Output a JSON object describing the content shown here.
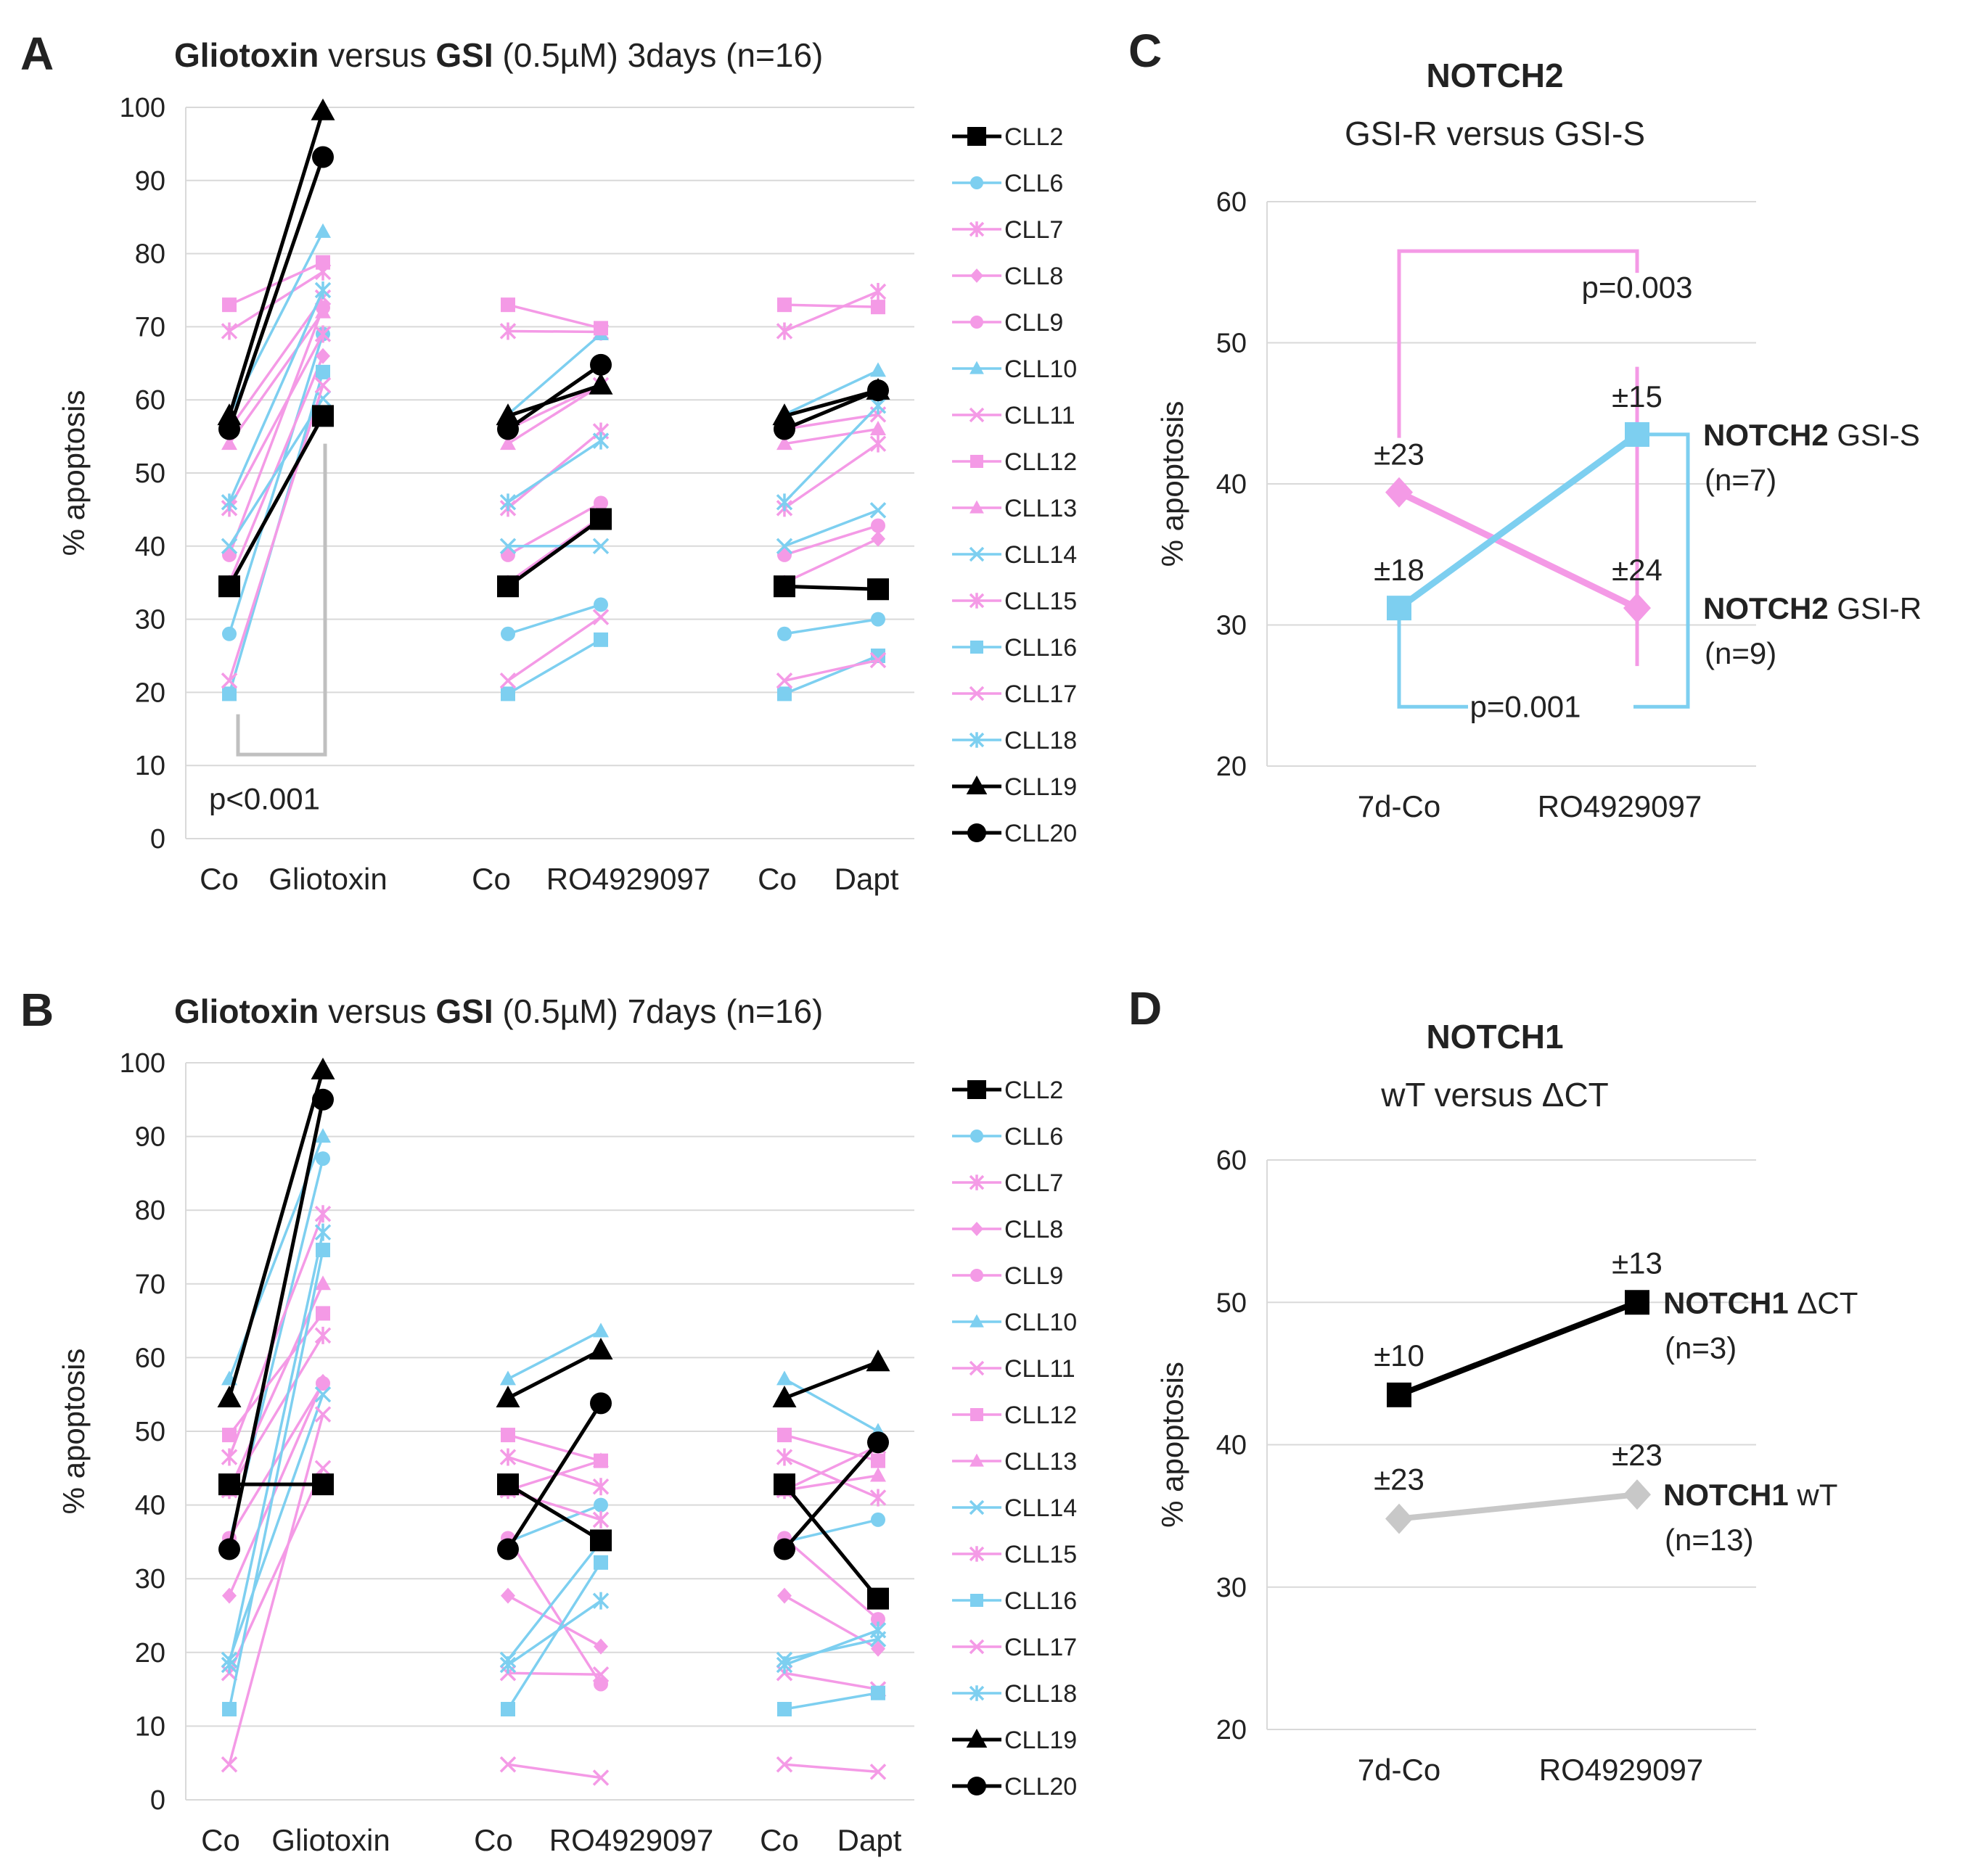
{
  "colors": {
    "black": "#000000",
    "blue": "#7dcff0",
    "pink": "#f49ae6",
    "gray": "#c8c8c8",
    "grid": "#d9d9d9"
  },
  "legend_lines": [
    "CLL2",
    "CLL6",
    "CLL7",
    "CLL8",
    "CLL9",
    "CLL10",
    "CLL11",
    "CLL12",
    "CLL13",
    "CLL14",
    "CLL15",
    "CLL16",
    "CLL17",
    "CLL18",
    "CLL19",
    "CLL20"
  ],
  "series_style": {
    "CLL2": {
      "color": "black",
      "marker": "square"
    },
    "CLL6": {
      "color": "blue",
      "marker": "circle"
    },
    "CLL7": {
      "color": "pink",
      "marker": "star"
    },
    "CLL8": {
      "color": "pink",
      "marker": "diamond"
    },
    "CLL9": {
      "color": "pink",
      "marker": "circle"
    },
    "CLL10": {
      "color": "blue",
      "marker": "triangle"
    },
    "CLL11": {
      "color": "pink",
      "marker": "x"
    },
    "CLL12": {
      "color": "pink",
      "marker": "square"
    },
    "CLL13": {
      "color": "pink",
      "marker": "triangle"
    },
    "CLL14": {
      "color": "blue",
      "marker": "x"
    },
    "CLL15": {
      "color": "pink",
      "marker": "star"
    },
    "CLL16": {
      "color": "blue",
      "marker": "square"
    },
    "CLL17": {
      "color": "pink",
      "marker": "x"
    },
    "CLL18": {
      "color": "blue",
      "marker": "star"
    },
    "CLL19": {
      "color": "black",
      "marker": "triangle"
    },
    "CLL20": {
      "color": "black",
      "marker": "circle"
    }
  },
  "chart_data": [
    {
      "id": "A",
      "panel_label": "A",
      "type": "line",
      "title": {
        "part1": "Gliotoxin",
        "part2": " versus ",
        "part3": "GSI",
        "part4": " (0.5µM) 3days (n=16)"
      },
      "ylabel": "% apoptosis",
      "ylim": [
        0,
        100
      ],
      "yticks": [
        0,
        10,
        20,
        30,
        40,
        50,
        60,
        70,
        80,
        90,
        100
      ],
      "categories": [
        "Co",
        "Gliotoxin",
        "Co",
        "RO4929097",
        "Co",
        "Dapt"
      ],
      "annotation": "p<0.001",
      "series": [
        {
          "name": "CLL2",
          "values": [
            34.5,
            57.8,
            34.5,
            43.7,
            34.5,
            34.1
          ]
        },
        {
          "name": "CLL6",
          "values": [
            28,
            69,
            28,
            32,
            28,
            30
          ]
        },
        {
          "name": "CLL7",
          "values": [
            69.4,
            77.5,
            69.4,
            69.3,
            69.4,
            74.8
          ]
        },
        {
          "name": "CLL8",
          "values": [
            35,
            66,
            35,
            44,
            35,
            41
          ]
        },
        {
          "name": "CLL9",
          "values": [
            38.8,
            72.6,
            38.8,
            45.9,
            38.8,
            42.8
          ]
        },
        {
          "name": "CLL10",
          "values": [
            58,
            83,
            58,
            69,
            58,
            64
          ]
        },
        {
          "name": "CLL11",
          "values": [
            56,
            74,
            56,
            62,
            56,
            58
          ]
        },
        {
          "name": "CLL12",
          "values": [
            73,
            78.8,
            73,
            69.8,
            73,
            72.7
          ]
        },
        {
          "name": "CLL13",
          "values": [
            54,
            72,
            54,
            62,
            54,
            56
          ]
        },
        {
          "name": "CLL14",
          "values": [
            40,
            60.2,
            40,
            40,
            40,
            44.9
          ]
        },
        {
          "name": "CLL15",
          "values": [
            45.2,
            69,
            45.2,
            55.7,
            45.2,
            54
          ]
        },
        {
          "name": "CLL16",
          "values": [
            19.8,
            63.8,
            19.8,
            27.2,
            19.8,
            25
          ]
        },
        {
          "name": "CLL17",
          "values": [
            21.6,
            62,
            21.6,
            30.3,
            21.6,
            24.4
          ]
        },
        {
          "name": "CLL18",
          "values": [
            46,
            75,
            46,
            54.4,
            46,
            59.2
          ]
        },
        {
          "name": "CLL19",
          "values": [
            57.8,
            99.5,
            57.8,
            62,
            57.8,
            61.3
          ]
        },
        {
          "name": "CLL20",
          "values": [
            56,
            93.2,
            56,
            64.8,
            56,
            61.3
          ]
        }
      ]
    },
    {
      "id": "B",
      "panel_label": "B",
      "type": "line",
      "title": {
        "part1": "Gliotoxin",
        "part2": " versus ",
        "part3": "GSI",
        "part4": " (0.5µM) 7days (n=16)"
      },
      "ylabel": "% apoptosis",
      "ylim": [
        0,
        100
      ],
      "yticks": [
        0,
        10,
        20,
        30,
        40,
        50,
        60,
        70,
        80,
        90,
        100
      ],
      "categories": [
        "Co",
        "Gliotoxin",
        "Co",
        "RO4929097",
        "Co",
        "Dapt"
      ],
      "series": [
        {
          "name": "CLL2",
          "values": [
            42.8,
            42.8,
            42.8,
            35.2,
            42.8,
            27.3
          ]
        },
        {
          "name": "CLL6",
          "values": [
            35,
            87,
            35,
            40,
            35,
            38
          ]
        },
        {
          "name": "CLL7",
          "values": [
            46.5,
            79.5,
            46.5,
            42.5,
            46.5,
            41
          ]
        },
        {
          "name": "CLL8",
          "values": [
            27.7,
            56.7,
            27.7,
            20.8,
            27.7,
            20.5
          ]
        },
        {
          "name": "CLL9",
          "values": [
            35.5,
            56.5,
            35.5,
            15.7,
            35.5,
            24.5
          ]
        },
        {
          "name": "CLL10",
          "values": [
            57.1,
            90,
            57.1,
            63.6,
            57.1,
            50
          ]
        },
        {
          "name": "CLL11",
          "values": [
            17.2,
            45,
            17.2,
            17,
            17.2,
            15
          ]
        },
        {
          "name": "CLL12",
          "values": [
            49.5,
            66,
            49.5,
            46,
            49.5,
            46
          ]
        },
        {
          "name": "CLL13",
          "values": [
            42,
            70,
            42,
            46,
            42,
            44
          ]
        },
        {
          "name": "CLL14",
          "values": [
            19,
            55,
            19,
            35,
            19,
            21.8
          ]
        },
        {
          "name": "CLL15",
          "values": [
            42,
            63,
            42,
            38,
            42,
            48
          ]
        },
        {
          "name": "CLL16",
          "values": [
            12.3,
            74.6,
            12.3,
            32.2,
            12.3,
            14.5
          ]
        },
        {
          "name": "CLL17",
          "values": [
            4.8,
            52.3,
            4.8,
            3,
            4.8,
            3.8
          ]
        },
        {
          "name": "CLL18",
          "values": [
            18.3,
            77,
            18.3,
            27,
            18.3,
            23
          ]
        },
        {
          "name": "CLL19",
          "values": [
            54.5,
            99,
            54.5,
            61,
            54.5,
            59.4
          ]
        },
        {
          "name": "CLL20",
          "values": [
            34,
            95,
            34,
            53.8,
            34,
            48.5
          ]
        }
      ]
    },
    {
      "id": "C",
      "panel_label": "C",
      "type": "line",
      "title": "NOTCH2",
      "subtitle": "GSI-R versus GSI-S",
      "ylabel": "% apoptosis",
      "ylim": [
        20,
        60
      ],
      "yticks": [
        20,
        30,
        40,
        50,
        60
      ],
      "categories": [
        "7d-Co",
        "RO4929097"
      ],
      "series": [
        {
          "name": "NOTCH2 GSI-R",
          "name_bold": "NOTCH2",
          "name_rest": " GSI-R",
          "n": "(n=9)",
          "color": "pink",
          "values": [
            39.4,
            31.2
          ],
          "errors": [
            "±23",
            "±24"
          ]
        },
        {
          "name": "NOTCH2 GSI-S",
          "name_bold": "NOTCH2",
          "name_rest": " GSI-S",
          "n": "(n=7)",
          "color": "blue",
          "values": [
            31.2,
            43.5
          ],
          "errors": [
            "±18",
            "±15"
          ]
        }
      ],
      "pvalues": {
        "pink": "p=0.003",
        "blue": "p=0.001"
      }
    },
    {
      "id": "D",
      "panel_label": "D",
      "type": "line",
      "title": "NOTCH1",
      "subtitle": "wT versus ΔCT",
      "ylabel": "% apoptosis",
      "ylim": [
        20,
        60
      ],
      "yticks": [
        20,
        30,
        40,
        50,
        60
      ],
      "categories": [
        "7d-Co",
        "RO4929097"
      ],
      "series": [
        {
          "name": "NOTCH1 ΔCT",
          "name_bold": "NOTCH1",
          "name_rest": " ΔCT",
          "n": "(n=3)",
          "color": "black",
          "values": [
            43.5,
            50
          ],
          "errors": [
            "±10",
            "±13"
          ]
        },
        {
          "name": "NOTCH1 wT",
          "name_bold": "NOTCH1",
          "name_rest": " wT",
          "n": "(n=13)",
          "color": "gray",
          "values": [
            34.8,
            36.5
          ],
          "errors": [
            "±23",
            "±23"
          ]
        }
      ]
    }
  ]
}
